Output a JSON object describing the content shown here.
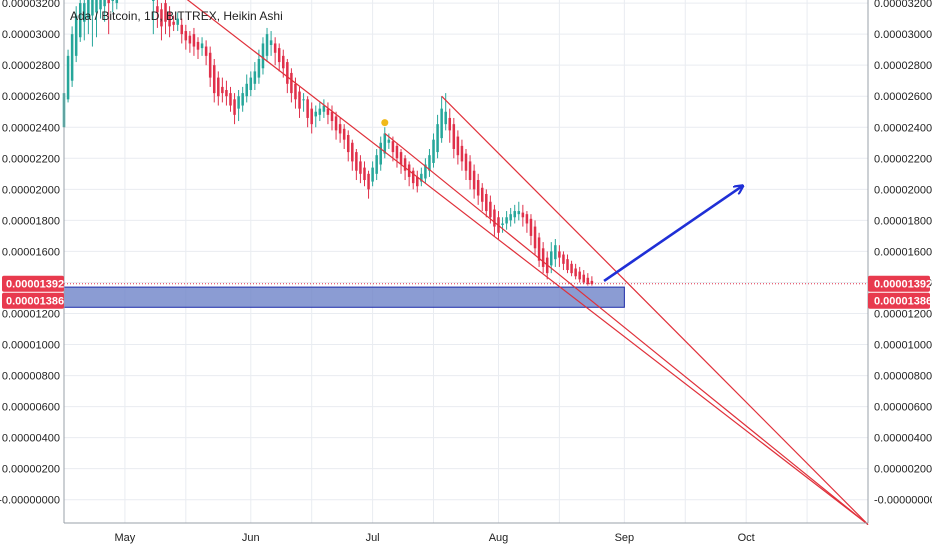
{
  "title": "Ada / Bitcoin, 1D, BITTREX, Heikin Ashi",
  "price_tags": {
    "last": "0.00001392",
    "prev": "0.00001386",
    "bg_color": "#e83a4e",
    "text_color": "#ffffff"
  },
  "colors": {
    "up": "#26a69a",
    "down": "#e0304a",
    "trendline": "#e0303a",
    "zone_fill": "#6e83c8",
    "zone_stroke": "#1b2aa8",
    "arrow": "#1f2fd6",
    "marker": "#f0b91a"
  },
  "icons": [
    "arrow-up-right-icon",
    "dividend-marker-icon"
  ],
  "chart_data": {
    "type": "candlestick",
    "style": "Heikin Ashi",
    "title": "Ada / Bitcoin, 1D, BITTREX, Heikin Ashi",
    "x_axis": {
      "tick_labels": [
        "May",
        "Jun",
        "Jul",
        "Aug",
        "Sep",
        "Oct"
      ],
      "range": [
        "2018-04-16",
        "2018-10-31"
      ]
    },
    "y_axis": {
      "tick_labels": [
        "0.00003200",
        "0.00003000",
        "0.00002800",
        "0.00002600",
        "0.00002400",
        "0.00002200",
        "0.00002000",
        "0.00001800",
        "0.00001600",
        "0.00001400",
        "0.00001200",
        "0.00001000",
        "0.00000800",
        "0.00000600",
        "0.00000400",
        "0.00000200",
        "-0.00000000"
      ],
      "range": [
        -1.5e-06,
        3.22e-05
      ],
      "position": "both sides"
    },
    "grid": true,
    "series": [
      {
        "kind": "ohlc",
        "values": [
          [
            "2018-04-16",
            2.4e-05,
            2.62e-05,
            2.56e-05,
            2.85e-05
          ],
          [
            "2018-04-17",
            2.58e-05,
            2.86e-05,
            2.56e-05,
            2.9e-05
          ],
          [
            "2018-04-18",
            2.7e-05,
            3e-05,
            2.66e-05,
            3.05e-05
          ],
          [
            "2018-04-19",
            2.86e-05,
            3.12e-05,
            2.82e-05,
            3.18e-05
          ],
          [
            "2018-04-20",
            2.98e-05,
            3.2e-05,
            2.95e-05,
            3.22e-05
          ],
          [
            "2018-04-21",
            3.08e-05,
            3.2e-05,
            2.96e-05,
            3.22e-05
          ],
          [
            "2018-04-22",
            3.1e-05,
            3.22e-05,
            3e-05,
            3.22e-05
          ],
          [
            "2018-04-23",
            3.12e-05,
            3.22e-05,
            2.92e-05,
            3.22e-05
          ],
          [
            "2018-04-24",
            3.14e-05,
            3.22e-05,
            2.98e-05,
            3.22e-05
          ],
          [
            "2018-04-25",
            3.16e-05,
            3.22e-05,
            3.1e-05,
            3.22e-05
          ],
          [
            "2018-04-26",
            3.18e-05,
            3.22e-05,
            3.08e-05,
            3.22e-05
          ],
          [
            "2018-04-27",
            3.22e-05,
            3.2e-05,
            3e-05,
            3.22e-05
          ],
          [
            "2018-04-28",
            3.22e-05,
            3.22e-05,
            3.14e-05,
            3.22e-05
          ],
          [
            "2018-04-29",
            3.2e-05,
            3.22e-05,
            3.16e-05,
            3.22e-05
          ],
          [
            "2018-05-08",
            3.22e-05,
            3.22e-05,
            3e-05,
            3.22e-05
          ],
          [
            "2018-05-09",
            3.18e-05,
            3.14e-05,
            3.04e-05,
            3.22e-05
          ],
          [
            "2018-05-10",
            3.16e-05,
            3.05e-05,
            2.96e-05,
            3.2e-05
          ],
          [
            "2018-05-11",
            3.2e-05,
            3.08e-05,
            3e-05,
            3.22e-05
          ],
          [
            "2018-05-12",
            3.14e-05,
            3.05e-05,
            2.98e-05,
            3.18e-05
          ],
          [
            "2018-05-13",
            3.08e-05,
            3.06e-05,
            3.02e-05,
            3.12e-05
          ],
          [
            "2018-05-14",
            3.06e-05,
            3.1e-05,
            3.02e-05,
            3.14e-05
          ],
          [
            "2018-05-15",
            3.06e-05,
            3e-05,
            2.94e-05,
            3.1e-05
          ],
          [
            "2018-05-16",
            3.02e-05,
            2.96e-05,
            2.9e-05,
            3.06e-05
          ],
          [
            "2018-05-17",
            2.99e-05,
            2.94e-05,
            2.88e-05,
            3.02e-05
          ],
          [
            "2018-05-18",
            3e-05,
            2.92e-05,
            2.86e-05,
            3.04e-05
          ],
          [
            "2018-05-19",
            2.95e-05,
            2.9e-05,
            2.84e-05,
            2.98e-05
          ],
          [
            "2018-05-20",
            2.91e-05,
            2.94e-05,
            2.86e-05,
            2.98e-05
          ],
          [
            "2018-05-21",
            2.92e-05,
            2.86e-05,
            2.8e-05,
            2.96e-05
          ],
          [
            "2018-05-22",
            2.88e-05,
            2.72e-05,
            2.66e-05,
            2.92e-05
          ],
          [
            "2018-05-23",
            2.8e-05,
            2.62e-05,
            2.56e-05,
            2.84e-05
          ],
          [
            "2018-05-24",
            2.72e-05,
            2.6e-05,
            2.54e-05,
            2.76e-05
          ],
          [
            "2018-05-25",
            2.66e-05,
            2.62e-05,
            2.56e-05,
            2.72e-05
          ],
          [
            "2018-05-26",
            2.64e-05,
            2.6e-05,
            2.54e-05,
            2.7e-05
          ],
          [
            "2018-05-27",
            2.62e-05,
            2.54e-05,
            2.5e-05,
            2.66e-05
          ],
          [
            "2018-05-28",
            2.58e-05,
            2.48e-05,
            2.42e-05,
            2.62e-05
          ],
          [
            "2018-05-29",
            2.52e-05,
            2.6e-05,
            2.44e-05,
            2.64e-05
          ],
          [
            "2018-05-30",
            2.54e-05,
            2.62e-05,
            2.5e-05,
            2.66e-05
          ],
          [
            "2018-05-31",
            2.6e-05,
            2.68e-05,
            2.56e-05,
            2.74e-05
          ],
          [
            "2018-06-01",
            2.64e-05,
            2.72e-05,
            2.6e-05,
            2.76e-05
          ],
          [
            "2018-06-02",
            2.68e-05,
            2.76e-05,
            2.64e-05,
            2.82e-05
          ],
          [
            "2018-06-03",
            2.72e-05,
            2.84e-05,
            2.68e-05,
            2.9e-05
          ],
          [
            "2018-06-04",
            2.78e-05,
            2.94e-05,
            2.74e-05,
            2.98e-05
          ],
          [
            "2018-06-05",
            2.86e-05,
            3e-05,
            2.82e-05,
            3.04e-05
          ],
          [
            "2018-06-06",
            2.93e-05,
            2.96e-05,
            2.86e-05,
            3.02e-05
          ],
          [
            "2018-06-07",
            2.94e-05,
            2.88e-05,
            2.8e-05,
            2.98e-05
          ],
          [
            "2018-06-08",
            2.91e-05,
            2.82e-05,
            2.76e-05,
            2.94e-05
          ],
          [
            "2018-06-09",
            2.86e-05,
            2.78e-05,
            2.72e-05,
            2.9e-05
          ],
          [
            "2018-06-10",
            2.82e-05,
            2.68e-05,
            2.62e-05,
            2.84e-05
          ],
          [
            "2018-06-11",
            2.75e-05,
            2.62e-05,
            2.56e-05,
            2.78e-05
          ],
          [
            "2018-06-12",
            2.68e-05,
            2.58e-05,
            2.52e-05,
            2.72e-05
          ],
          [
            "2018-06-13",
            2.63e-05,
            2.52e-05,
            2.46e-05,
            2.66e-05
          ],
          [
            "2018-06-14",
            2.58e-05,
            2.58e-05,
            2.5e-05,
            2.62e-05
          ],
          [
            "2018-06-15",
            2.58e-05,
            2.46e-05,
            2.4e-05,
            2.6e-05
          ],
          [
            "2018-06-16",
            2.52e-05,
            2.42e-05,
            2.36e-05,
            2.56e-05
          ],
          [
            "2018-06-17",
            2.47e-05,
            2.5e-05,
            2.4e-05,
            2.54e-05
          ],
          [
            "2018-06-18",
            2.48e-05,
            2.52e-05,
            2.44e-05,
            2.56e-05
          ],
          [
            "2018-06-19",
            2.5e-05,
            2.54e-05,
            2.46e-05,
            2.58e-05
          ],
          [
            "2018-06-20",
            2.52e-05,
            2.48e-05,
            2.42e-05,
            2.56e-05
          ],
          [
            "2018-06-21",
            2.5e-05,
            2.44e-05,
            2.38e-05,
            2.54e-05
          ],
          [
            "2018-06-22",
            2.47e-05,
            2.38e-05,
            2.32e-05,
            2.5e-05
          ],
          [
            "2018-06-23",
            2.42e-05,
            2.36e-05,
            2.3e-05,
            2.46e-05
          ],
          [
            "2018-06-24",
            2.39e-05,
            2.32e-05,
            2.26e-05,
            2.42e-05
          ],
          [
            "2018-06-25",
            2.35e-05,
            2.24e-05,
            2.18e-05,
            2.38e-05
          ],
          [
            "2018-06-26",
            2.3e-05,
            2.18e-05,
            2.12e-05,
            2.32e-05
          ],
          [
            "2018-06-27",
            2.24e-05,
            2.12e-05,
            2.06e-05,
            2.26e-05
          ],
          [
            "2018-06-28",
            2.18e-05,
            2.1e-05,
            2.04e-05,
            2.22e-05
          ],
          [
            "2018-06-29",
            2.14e-05,
            2.06e-05,
            2.02e-05,
            2.18e-05
          ],
          [
            "2018-06-30",
            2.1e-05,
            2e-05,
            1.94e-05,
            2.12e-05
          ],
          [
            "2018-07-01",
            2.05e-05,
            2.14e-05,
            2.02e-05,
            2.18e-05
          ],
          [
            "2018-07-02",
            2.1e-05,
            2.22e-05,
            2.06e-05,
            2.26e-05
          ],
          [
            "2018-07-03",
            2.16e-05,
            2.3e-05,
            2.12e-05,
            2.34e-05
          ],
          [
            "2018-07-04",
            2.23e-05,
            2.36e-05,
            2.2e-05,
            2.4e-05
          ],
          [
            "2018-07-05",
            2.3e-05,
            2.32e-05,
            2.26e-05,
            2.36e-05
          ],
          [
            "2018-07-06",
            2.31e-05,
            2.24e-05,
            2.18e-05,
            2.34e-05
          ],
          [
            "2018-07-07",
            2.28e-05,
            2.2e-05,
            2.14e-05,
            2.3e-05
          ],
          [
            "2018-07-08",
            2.24e-05,
            2.16e-05,
            2.1e-05,
            2.26e-05
          ],
          [
            "2018-07-09",
            2.2e-05,
            2.12e-05,
            2.06e-05,
            2.22e-05
          ],
          [
            "2018-07-10",
            2.16e-05,
            2.08e-05,
            2.02e-05,
            2.18e-05
          ],
          [
            "2018-07-11",
            2.12e-05,
            2.04e-05,
            2e-05,
            2.14e-05
          ],
          [
            "2018-07-12",
            2.08e-05,
            2.02e-05,
            1.98e-05,
            2.12e-05
          ],
          [
            "2018-07-13",
            2.05e-05,
            2.1e-05,
            2.02e-05,
            2.14e-05
          ],
          [
            "2018-07-14",
            2.07e-05,
            2.16e-05,
            2.04e-05,
            2.2e-05
          ],
          [
            "2018-07-15",
            2.12e-05,
            2.22e-05,
            2.08e-05,
            2.26e-05
          ],
          [
            "2018-07-16",
            2.17e-05,
            2.32e-05,
            2.14e-05,
            2.36e-05
          ],
          [
            "2018-07-17",
            2.24e-05,
            2.42e-05,
            2.2e-05,
            2.48e-05
          ],
          [
            "2018-07-18",
            2.33e-05,
            2.52e-05,
            2.3e-05,
            2.6e-05
          ],
          [
            "2018-07-19",
            2.42e-05,
            2.5e-05,
            2.38e-05,
            2.62e-05
          ],
          [
            "2018-07-20",
            2.46e-05,
            2.38e-05,
            2.3e-05,
            2.52e-05
          ],
          [
            "2018-07-21",
            2.42e-05,
            2.26e-05,
            2.2e-05,
            2.46e-05
          ],
          [
            "2018-07-22",
            2.34e-05,
            2.22e-05,
            2.16e-05,
            2.38e-05
          ],
          [
            "2018-07-23",
            2.28e-05,
            2.18e-05,
            2.12e-05,
            2.32e-05
          ],
          [
            "2018-07-24",
            2.23e-05,
            2.12e-05,
            2.06e-05,
            2.26e-05
          ],
          [
            "2018-07-25",
            2.18e-05,
            2.06e-05,
            2e-05,
            2.22e-05
          ],
          [
            "2018-07-26",
            2.12e-05,
            2e-05,
            1.94e-05,
            2.16e-05
          ],
          [
            "2018-07-27",
            2.06e-05,
            1.96e-05,
            1.9e-05,
            2.1e-05
          ],
          [
            "2018-07-28",
            2.01e-05,
            1.92e-05,
            1.86e-05,
            2.04e-05
          ],
          [
            "2018-07-29",
            1.97e-05,
            1.86e-05,
            1.82e-05,
            2e-05
          ],
          [
            "2018-07-30",
            1.92e-05,
            1.82e-05,
            1.78e-05,
            1.96e-05
          ],
          [
            "2018-07-31",
            1.87e-05,
            1.76e-05,
            1.7e-05,
            1.9e-05
          ],
          [
            "2018-08-01",
            1.82e-05,
            1.72e-05,
            1.68e-05,
            1.86e-05
          ],
          [
            "2018-08-02",
            1.77e-05,
            1.78e-05,
            1.72e-05,
            1.82e-05
          ],
          [
            "2018-08-03",
            1.78e-05,
            1.82e-05,
            1.74e-05,
            1.86e-05
          ],
          [
            "2018-08-04",
            1.8e-05,
            1.84e-05,
            1.76e-05,
            1.88e-05
          ],
          [
            "2018-08-05",
            1.82e-05,
            1.86e-05,
            1.78e-05,
            1.9e-05
          ],
          [
            "2018-08-06",
            1.84e-05,
            1.86e-05,
            1.8e-05,
            1.92e-05
          ],
          [
            "2018-08-07",
            1.85e-05,
            1.82e-05,
            1.76e-05,
            1.9e-05
          ],
          [
            "2018-08-08",
            1.84e-05,
            1.78e-05,
            1.72e-05,
            1.86e-05
          ],
          [
            "2018-08-09",
            1.81e-05,
            1.7e-05,
            1.64e-05,
            1.84e-05
          ],
          [
            "2018-08-10",
            1.76e-05,
            1.62e-05,
            1.58e-05,
            1.8e-05
          ],
          [
            "2018-08-11",
            1.69e-05,
            1.54e-05,
            1.5e-05,
            1.72e-05
          ],
          [
            "2018-08-12",
            1.62e-05,
            1.5e-05,
            1.46e-05,
            1.66e-05
          ],
          [
            "2018-08-13",
            1.56e-05,
            1.46e-05,
            1.42e-05,
            1.6e-05
          ],
          [
            "2018-08-14",
            1.51e-05,
            1.6e-05,
            1.46e-05,
            1.66e-05
          ],
          [
            "2018-08-15",
            1.55e-05,
            1.64e-05,
            1.5e-05,
            1.68e-05
          ],
          [
            "2018-08-16",
            1.6e-05,
            1.56e-05,
            1.5e-05,
            1.64e-05
          ],
          [
            "2018-08-17",
            1.58e-05,
            1.52e-05,
            1.48e-05,
            1.6e-05
          ],
          [
            "2018-08-18",
            1.55e-05,
            1.48e-05,
            1.46e-05,
            1.58e-05
          ],
          [
            "2018-08-19",
            1.52e-05,
            1.46e-05,
            1.44e-05,
            1.54e-05
          ],
          [
            "2018-08-20",
            1.49e-05,
            1.44e-05,
            1.42e-05,
            1.52e-05
          ],
          [
            "2018-08-21",
            1.47e-05,
            1.42e-05,
            1.4e-05,
            1.5e-05
          ],
          [
            "2018-08-22",
            1.45e-05,
            1.4e-05,
            1.39e-05,
            1.48e-05
          ],
          [
            "2018-08-23",
            1.43e-05,
            1.39e-05,
            1.38e-05,
            1.46e-05
          ],
          [
            "2018-08-24",
            1.41e-05,
            1.39e-05,
            1.38e-05,
            1.44e-05
          ]
        ]
      }
    ],
    "annotations": [
      {
        "type": "trendline",
        "from": [
          "2018-05-15",
          3.25e-05
        ],
        "to": [
          "2018-10-31",
          -1.6e-06
        ]
      },
      {
        "type": "trendline",
        "from": [
          "2018-07-18",
          2.6e-05
        ],
        "to": [
          "2018-10-31",
          -1.6e-06
        ]
      },
      {
        "type": "trendline",
        "from": [
          "2018-07-04",
          2.36e-05
        ],
        "to": [
          "2018-10-31",
          -1.6e-06
        ]
      },
      {
        "type": "rectangle",
        "from": [
          "2018-04-16",
          1.37e-05
        ],
        "to": [
          "2018-09-01",
          1.24e-05
        ]
      },
      {
        "type": "arrow",
        "from": [
          "2018-08-27",
          1.41e-05
        ],
        "to": [
          "2018-09-30",
          2.02e-05
        ]
      },
      {
        "type": "marker",
        "at": [
          "2018-07-04",
          2.43e-05
        ]
      }
    ],
    "last_price_line": 1.392e-05
  }
}
